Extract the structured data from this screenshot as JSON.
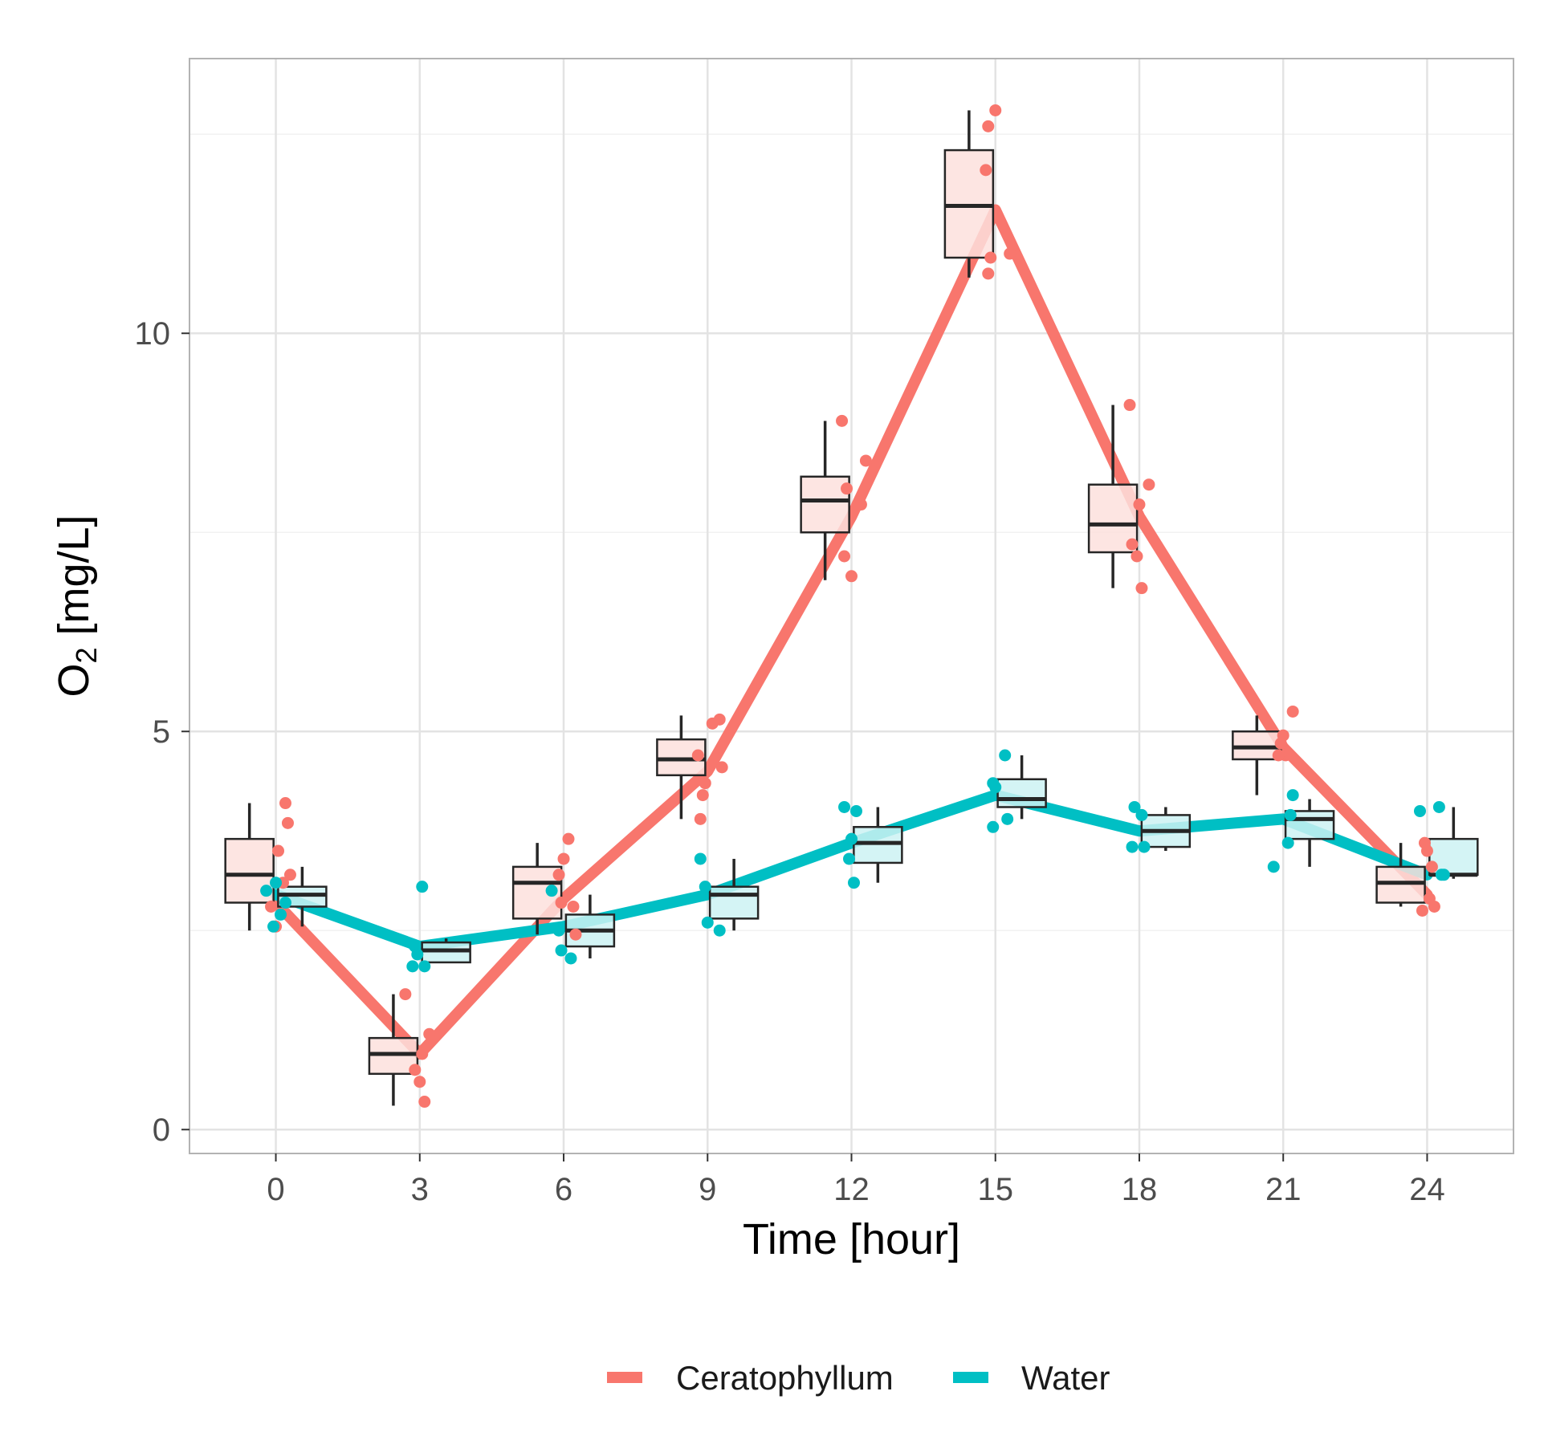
{
  "chart_data": {
    "type": "line",
    "subtype": "boxplot-with-jittered-points-and-mean-lines",
    "xlabel": "Time [hour]",
    "ylabel": {
      "main": "O",
      "subscript": "2",
      "unit": " [mg/L]"
    },
    "xlim": [
      -1.8,
      25.8
    ],
    "ylim": [
      -0.3,
      13.45
    ],
    "x_ticks": [
      0,
      3,
      6,
      9,
      12,
      15,
      18,
      21,
      24
    ],
    "x_tick_labels": [
      "0",
      "3",
      "6",
      "9",
      "12",
      "15",
      "18",
      "21",
      "24"
    ],
    "y_ticks": [
      0,
      5,
      10
    ],
    "y_tick_labels": [
      "0",
      "5",
      "10"
    ],
    "grid": true,
    "legend_position": "bottom",
    "x_dodge_hours": 0.55,
    "series": [
      {
        "name": "Ceratophyllum",
        "color": "#F8766D",
        "box_fill": "#FDE0DD",
        "dodge": -1,
        "x": [
          0,
          3,
          6,
          9,
          12,
          15,
          18,
          21,
          24
        ],
        "line": [
          2.85,
          0.95,
          2.9,
          4.5,
          7.7,
          11.55,
          7.7,
          4.8,
          2.95
        ],
        "boxes": [
          {
            "x": 0,
            "min": 2.5,
            "q1": 2.85,
            "median": 3.2,
            "q3": 3.65,
            "max": 4.1
          },
          {
            "x": 3,
            "min": 0.3,
            "q1": 0.7,
            "median": 0.95,
            "q3": 1.15,
            "max": 1.7
          },
          {
            "x": 6,
            "min": 2.45,
            "q1": 2.65,
            "median": 3.1,
            "q3": 3.3,
            "max": 3.6
          },
          {
            "x": 9,
            "min": 3.9,
            "q1": 4.45,
            "median": 4.65,
            "q3": 4.9,
            "max": 5.2
          },
          {
            "x": 12,
            "min": 6.9,
            "q1": 7.5,
            "median": 7.9,
            "q3": 8.2,
            "max": 8.9
          },
          {
            "x": 15,
            "min": 10.7,
            "q1": 10.95,
            "median": 11.6,
            "q3": 12.3,
            "max": 12.8
          },
          {
            "x": 18,
            "min": 6.8,
            "q1": 7.25,
            "median": 7.6,
            "q3": 8.1,
            "max": 9.1
          },
          {
            "x": 21,
            "min": 4.2,
            "q1": 4.65,
            "median": 4.8,
            "q3": 5.0,
            "max": 5.2
          },
          {
            "x": 24,
            "min": 2.8,
            "q1": 2.85,
            "median": 3.1,
            "q3": 3.3,
            "max": 3.6
          }
        ],
        "points": [
          [
            0.2,
            4.1
          ],
          [
            0.25,
            3.85
          ],
          [
            0.05,
            3.5
          ],
          [
            0.3,
            3.2
          ],
          [
            0.15,
            3.1
          ],
          [
            -0.1,
            2.8
          ],
          [
            0.0,
            2.55
          ],
          [
            2.7,
            1.7
          ],
          [
            3.2,
            1.2
          ],
          [
            3.05,
            0.95
          ],
          [
            2.9,
            0.75
          ],
          [
            3.0,
            0.6
          ],
          [
            3.1,
            0.35
          ],
          [
            6.1,
            3.65
          ],
          [
            6.0,
            3.4
          ],
          [
            5.9,
            3.2
          ],
          [
            5.95,
            2.85
          ],
          [
            6.2,
            2.8
          ],
          [
            6.25,
            2.45
          ],
          [
            9.1,
            5.1
          ],
          [
            9.25,
            5.15
          ],
          [
            8.8,
            4.7
          ],
          [
            9.3,
            4.55
          ],
          [
            8.95,
            4.35
          ],
          [
            8.9,
            4.2
          ],
          [
            8.85,
            3.9
          ],
          [
            11.8,
            8.9
          ],
          [
            12.3,
            8.4
          ],
          [
            11.9,
            8.05
          ],
          [
            12.2,
            7.85
          ],
          [
            11.85,
            7.2
          ],
          [
            12.0,
            6.95
          ],
          [
            15.0,
            12.8
          ],
          [
            14.85,
            12.6
          ],
          [
            14.8,
            12.05
          ],
          [
            15.3,
            11.0
          ],
          [
            14.9,
            10.95
          ],
          [
            14.85,
            10.75
          ],
          [
            17.8,
            9.1
          ],
          [
            18.2,
            8.1
          ],
          [
            18.0,
            7.85
          ],
          [
            17.85,
            7.35
          ],
          [
            17.95,
            7.2
          ],
          [
            18.05,
            6.8
          ],
          [
            21.2,
            5.25
          ],
          [
            21.0,
            4.95
          ],
          [
            20.95,
            4.85
          ],
          [
            21.05,
            4.7
          ],
          [
            20.9,
            4.7
          ],
          [
            23.95,
            3.6
          ],
          [
            24.0,
            3.5
          ],
          [
            24.1,
            3.3
          ],
          [
            24.05,
            2.9
          ],
          [
            24.15,
            2.8
          ],
          [
            23.9,
            2.75
          ]
        ]
      },
      {
        "name": "Water",
        "color": "#00BFC4",
        "box_fill": "#CCF2F3",
        "dodge": 1,
        "x": [
          0,
          3,
          6,
          9,
          12,
          15,
          18,
          21,
          24
        ],
        "line": [
          2.95,
          2.3,
          2.55,
          2.95,
          3.6,
          4.2,
          3.75,
          3.9,
          3.2
        ],
        "boxes": [
          {
            "x": 0,
            "min": 2.55,
            "q1": 2.8,
            "median": 2.95,
            "q3": 3.05,
            "max": 3.3
          },
          {
            "x": 3,
            "min": 2.1,
            "q1": 2.1,
            "median": 2.25,
            "q3": 2.35,
            "max": 2.4
          },
          {
            "x": 6,
            "min": 2.15,
            "q1": 2.3,
            "median": 2.5,
            "q3": 2.7,
            "max": 2.95
          },
          {
            "x": 9,
            "min": 2.5,
            "q1": 2.65,
            "median": 2.95,
            "q3": 3.05,
            "max": 3.4
          },
          {
            "x": 12,
            "min": 3.1,
            "q1": 3.35,
            "median": 3.6,
            "q3": 3.8,
            "max": 4.05
          },
          {
            "x": 15,
            "min": 3.9,
            "q1": 4.05,
            "median": 4.15,
            "q3": 4.4,
            "max": 4.7
          },
          {
            "x": 18,
            "min": 3.5,
            "q1": 3.55,
            "median": 3.75,
            "q3": 3.95,
            "max": 4.05
          },
          {
            "x": 21,
            "min": 3.3,
            "q1": 3.65,
            "median": 3.9,
            "q3": 4.0,
            "max": 4.15
          },
          {
            "x": 24,
            "min": 3.15,
            "q1": 3.2,
            "median": 3.2,
            "q3": 3.65,
            "max": 4.05
          }
        ],
        "points": [
          [
            -0.2,
            3.0
          ],
          [
            0.0,
            3.1
          ],
          [
            0.2,
            2.85
          ],
          [
            0.1,
            2.7
          ],
          [
            -0.05,
            2.55
          ],
          [
            3.05,
            3.05
          ],
          [
            2.9,
            2.3
          ],
          [
            2.95,
            2.2
          ],
          [
            3.1,
            2.05
          ],
          [
            2.85,
            2.05
          ],
          [
            5.75,
            3.0
          ],
          [
            5.9,
            2.5
          ],
          [
            5.95,
            2.25
          ],
          [
            6.15,
            2.15
          ],
          [
            8.85,
            3.4
          ],
          [
            8.95,
            3.05
          ],
          [
            9.0,
            2.6
          ],
          [
            9.25,
            2.5
          ],
          [
            11.85,
            4.05
          ],
          [
            12.1,
            4.0
          ],
          [
            12.0,
            3.65
          ],
          [
            11.95,
            3.4
          ],
          [
            12.05,
            3.1
          ],
          [
            15.2,
            4.7
          ],
          [
            14.95,
            4.35
          ],
          [
            15.0,
            4.3
          ],
          [
            15.25,
            3.9
          ],
          [
            14.95,
            3.8
          ],
          [
            17.9,
            4.05
          ],
          [
            18.05,
            3.95
          ],
          [
            17.85,
            3.55
          ],
          [
            18.1,
            3.55
          ],
          [
            21.2,
            4.2
          ],
          [
            21.15,
            3.95
          ],
          [
            21.1,
            3.6
          ],
          [
            20.8,
            3.3
          ],
          [
            23.85,
            4.0
          ],
          [
            24.25,
            4.05
          ],
          [
            24.35,
            3.2
          ],
          [
            24.3,
            3.2
          ]
        ]
      }
    ]
  }
}
